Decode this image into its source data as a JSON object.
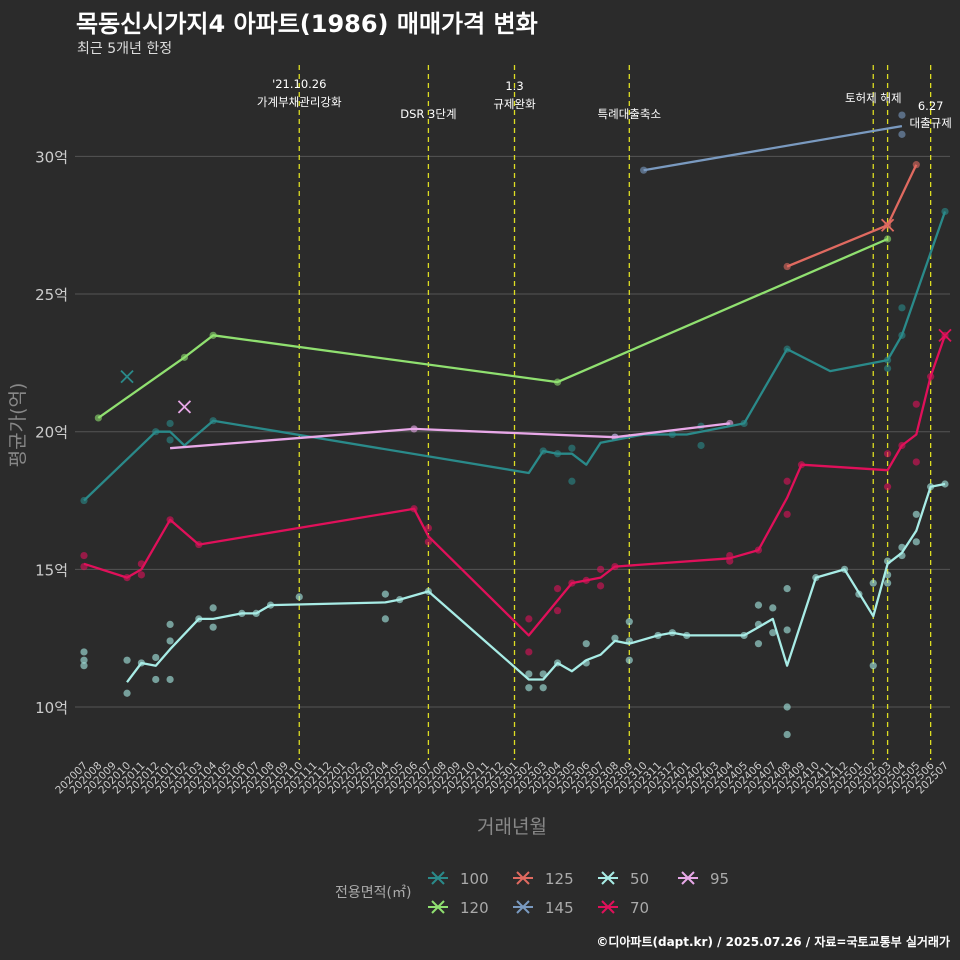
{
  "title": "목동신시가지4 아파트(1986) 매매가격 변화",
  "subtitle": "최근 5개년 한정",
  "caption": "©디아파트(dapt.kr) / 2025.07.26 / 자료=국토교통부 실거래가",
  "colors": {
    "background": "#2b2b2b",
    "grid": "#555555",
    "event_line": "#dddd22",
    "s100": "#2a8a8a",
    "s120": "#90e070",
    "s125": "#e06a60",
    "s145": "#7a9ac0",
    "s50": "#a8ece6",
    "s70": "#e0105a",
    "s95": "#e8a8e8"
  },
  "chart_data": {
    "type": "line",
    "xlabel": "거래년월",
    "ylabel": "평균가(억)",
    "ylim": [
      8,
      33
    ],
    "y_ticks": [
      10,
      15,
      20,
      25,
      30
    ],
    "y_tick_labels": [
      "10억",
      "15억",
      "20억",
      "25억",
      "30억"
    ],
    "x_months": [
      "202007",
      "202008",
      "202009",
      "202010",
      "202011",
      "202012",
      "202101",
      "202102",
      "202103",
      "202104",
      "202105",
      "202106",
      "202107",
      "202108",
      "202109",
      "202110",
      "202111",
      "202112",
      "202201",
      "202202",
      "202203",
      "202204",
      "202205",
      "202206",
      "202207",
      "202208",
      "202209",
      "202210",
      "202211",
      "202212",
      "202301",
      "202302",
      "202303",
      "202304",
      "202305",
      "202306",
      "202307",
      "202308",
      "202309",
      "202310",
      "202311",
      "202312",
      "202401",
      "202402",
      "202403",
      "202404",
      "202405",
      "202406",
      "202407",
      "202408",
      "202409",
      "202410",
      "202411",
      "202412",
      "202501",
      "202502",
      "202503",
      "202504",
      "202505",
      "202506",
      "202507"
    ],
    "legend_title": "전용면적(㎡)",
    "legend_position": "bottom",
    "events": [
      {
        "month": "202110",
        "label": "'21.10.26\n가계부채관리강화"
      },
      {
        "month": "202207",
        "label": "DSR 3단계"
      },
      {
        "month": "202301",
        "label": "1.3\n규제완화"
      },
      {
        "month": "202309",
        "label": "특례대출축소"
      },
      {
        "month": "202502",
        "label": "토허제 해제"
      },
      {
        "month": "202503",
        "label": ""
      },
      {
        "month": "202506",
        "label": "6.27\n대출규제"
      }
    ],
    "series": [
      {
        "name": "100",
        "color_key": "s100",
        "line": [
          [
            "202007",
            17.5
          ],
          [
            "202012",
            20.0
          ],
          [
            "202101",
            20.0
          ],
          [
            "202102",
            19.5
          ],
          [
            "202104",
            20.4
          ],
          [
            "202302",
            18.5
          ],
          [
            "202303",
            19.3
          ],
          [
            "202304",
            19.2
          ],
          [
            "202305",
            19.2
          ],
          [
            "202306",
            18.8
          ],
          [
            "202307",
            19.6
          ],
          [
            "202310",
            19.9
          ],
          [
            "202311",
            19.9
          ],
          [
            "202312",
            19.9
          ],
          [
            "202401",
            19.9
          ],
          [
            "202405",
            20.3
          ],
          [
            "202408",
            23.0
          ],
          [
            "202411",
            22.2
          ],
          [
            "202503",
            22.6
          ],
          [
            "202504",
            23.5
          ],
          [
            "202507",
            28.0
          ]
        ],
        "points": [
          [
            "202007",
            17.5
          ],
          [
            "202012",
            20.0
          ],
          [
            "202101",
            20.3
          ],
          [
            "202101",
            19.7
          ],
          [
            "202104",
            20.4
          ],
          [
            "202303",
            19.3
          ],
          [
            "202304",
            19.2
          ],
          [
            "202305",
            19.4
          ],
          [
            "202305",
            18.2
          ],
          [
            "202308",
            19.8
          ],
          [
            "202312",
            19.9
          ],
          [
            "202402",
            20.2
          ],
          [
            "202402",
            19.5
          ],
          [
            "202405",
            20.3
          ],
          [
            "202408",
            23.0
          ],
          [
            "202503",
            22.6
          ],
          [
            "202503",
            22.3
          ],
          [
            "202504",
            23.5
          ],
          [
            "202504",
            24.5
          ],
          [
            "202507",
            28.0
          ]
        ],
        "crosses": [
          [
            "202010",
            22.0
          ]
        ]
      },
      {
        "name": "120",
        "color_key": "s120",
        "line": [
          [
            "202008",
            20.5
          ],
          [
            "202102",
            22.7
          ],
          [
            "202104",
            23.5
          ],
          [
            "202304",
            21.8
          ],
          [
            "202503",
            27.0
          ]
        ],
        "points": [
          [
            "202008",
            20.5
          ],
          [
            "202102",
            22.7
          ],
          [
            "202104",
            23.5
          ],
          [
            "202304",
            21.8
          ],
          [
            "202503",
            27.0
          ]
        ],
        "crosses": []
      },
      {
        "name": "125",
        "color_key": "s125",
        "line": [
          [
            "202408",
            26.0
          ],
          [
            "202503",
            27.5
          ],
          [
            "202505",
            29.7
          ]
        ],
        "points": [
          [
            "202408",
            26.0
          ],
          [
            "202503",
            27.5
          ],
          [
            "202505",
            29.7
          ]
        ],
        "crosses": [
          [
            "202503",
            27.5
          ]
        ]
      },
      {
        "name": "145",
        "color_key": "s145",
        "line": [
          [
            "202310",
            29.5
          ],
          [
            "202504",
            31.1
          ]
        ],
        "points": [
          [
            "202310",
            29.5
          ],
          [
            "202504",
            31.5
          ],
          [
            "202504",
            30.8
          ]
        ],
        "crosses": []
      },
      {
        "name": "50",
        "color_key": "s50",
        "line": [
          [
            "202010",
            10.9
          ],
          [
            "202011",
            11.6
          ],
          [
            "202012",
            11.5
          ],
          [
            "202101",
            12.1
          ],
          [
            "202103",
            13.2
          ],
          [
            "202104",
            13.2
          ],
          [
            "202106",
            13.4
          ],
          [
            "202107",
            13.4
          ],
          [
            "202108",
            13.7
          ],
          [
            "202204",
            13.8
          ],
          [
            "202205",
            13.9
          ],
          [
            "202207",
            14.2
          ],
          [
            "202302",
            11.0
          ],
          [
            "202303",
            11.0
          ],
          [
            "202304",
            11.6
          ],
          [
            "202305",
            11.3
          ],
          [
            "202306",
            11.7
          ],
          [
            "202307",
            11.9
          ],
          [
            "202308",
            12.4
          ],
          [
            "202309",
            12.3
          ],
          [
            "202311",
            12.6
          ],
          [
            "202312",
            12.7
          ],
          [
            "202401",
            12.6
          ],
          [
            "202405",
            12.6
          ],
          [
            "202406",
            12.9
          ],
          [
            "202407",
            13.2
          ],
          [
            "202408",
            11.5
          ],
          [
            "202410",
            14.7
          ],
          [
            "202412",
            15.0
          ],
          [
            "202502",
            13.3
          ],
          [
            "202503",
            15.2
          ],
          [
            "202504",
            15.6
          ],
          [
            "202505",
            16.4
          ],
          [
            "202506",
            18.0
          ],
          [
            "202507",
            18.1
          ]
        ],
        "points": [
          [
            "202007",
            12.0
          ],
          [
            "202007",
            11.7
          ],
          [
            "202007",
            11.5
          ],
          [
            "202010",
            11.7
          ],
          [
            "202010",
            10.5
          ],
          [
            "202011",
            11.6
          ],
          [
            "202012",
            11.8
          ],
          [
            "202012",
            11.0
          ],
          [
            "202101",
            13.0
          ],
          [
            "202101",
            12.4
          ],
          [
            "202101",
            11.0
          ],
          [
            "202103",
            13.2
          ],
          [
            "202104",
            12.9
          ],
          [
            "202104",
            13.6
          ],
          [
            "202106",
            13.4
          ],
          [
            "202107",
            13.4
          ],
          [
            "202108",
            13.7
          ],
          [
            "202110",
            14.0
          ],
          [
            "202204",
            14.1
          ],
          [
            "202204",
            13.2
          ],
          [
            "202205",
            13.9
          ],
          [
            "202207",
            14.2
          ],
          [
            "202302",
            11.2
          ],
          [
            "202302",
            10.7
          ],
          [
            "202303",
            11.2
          ],
          [
            "202303",
            10.7
          ],
          [
            "202304",
            11.6
          ],
          [
            "202306",
            12.3
          ],
          [
            "202306",
            11.6
          ],
          [
            "202308",
            12.5
          ],
          [
            "202309",
            13.1
          ],
          [
            "202309",
            12.4
          ],
          [
            "202309",
            11.7
          ],
          [
            "202311",
            12.6
          ],
          [
            "202312",
            12.7
          ],
          [
            "202401",
            12.6
          ],
          [
            "202405",
            12.6
          ],
          [
            "202406",
            13.7
          ],
          [
            "202406",
            13.0
          ],
          [
            "202406",
            12.3
          ],
          [
            "202407",
            13.6
          ],
          [
            "202407",
            12.7
          ],
          [
            "202408",
            14.3
          ],
          [
            "202408",
            12.8
          ],
          [
            "202408",
            10.0
          ],
          [
            "202408",
            9.0
          ],
          [
            "202410",
            14.7
          ],
          [
            "202412",
            15.0
          ],
          [
            "202501",
            14.1
          ],
          [
            "202502",
            14.5
          ],
          [
            "202502",
            11.5
          ],
          [
            "202503",
            15.3
          ],
          [
            "202503",
            14.8
          ],
          [
            "202503",
            14.5
          ],
          [
            "202504",
            15.8
          ],
          [
            "202504",
            15.5
          ],
          [
            "202505",
            17.0
          ],
          [
            "202505",
            16.0
          ],
          [
            "202506",
            18.0
          ],
          [
            "202507",
            18.1
          ]
        ],
        "crosses": []
      },
      {
        "name": "70",
        "color_key": "s70",
        "line": [
          [
            "202007",
            15.2
          ],
          [
            "202010",
            14.7
          ],
          [
            "202011",
            15.0
          ],
          [
            "202101",
            16.8
          ],
          [
            "202103",
            15.9
          ],
          [
            "202206",
            17.2
          ],
          [
            "202207",
            16.2
          ],
          [
            "202302",
            12.6
          ],
          [
            "202305",
            14.5
          ],
          [
            "202306",
            14.6
          ],
          [
            "202307",
            14.7
          ],
          [
            "202308",
            15.1
          ],
          [
            "202404",
            15.4
          ],
          [
            "202406",
            15.7
          ],
          [
            "202408",
            17.6
          ],
          [
            "202409",
            18.8
          ],
          [
            "202503",
            18.6
          ],
          [
            "202504",
            19.5
          ],
          [
            "202505",
            19.9
          ],
          [
            "202506",
            22.0
          ],
          [
            "202507",
            23.5
          ]
        ],
        "points": [
          [
            "202007",
            15.5
          ],
          [
            "202007",
            15.1
          ],
          [
            "202010",
            14.7
          ],
          [
            "202011",
            15.2
          ],
          [
            "202011",
            14.8
          ],
          [
            "202101",
            16.8
          ],
          [
            "202103",
            15.9
          ],
          [
            "202206",
            17.2
          ],
          [
            "202207",
            16.5
          ],
          [
            "202207",
            16.0
          ],
          [
            "202302",
            13.2
          ],
          [
            "202302",
            12.0
          ],
          [
            "202304",
            14.3
          ],
          [
            "202304",
            13.5
          ],
          [
            "202305",
            14.5
          ],
          [
            "202306",
            14.6
          ],
          [
            "202307",
            15.0
          ],
          [
            "202307",
            14.4
          ],
          [
            "202308",
            15.1
          ],
          [
            "202404",
            15.5
          ],
          [
            "202404",
            15.3
          ],
          [
            "202406",
            15.7
          ],
          [
            "202408",
            18.2
          ],
          [
            "202408",
            17.0
          ],
          [
            "202409",
            18.8
          ],
          [
            "202503",
            19.2
          ],
          [
            "202503",
            18.0
          ],
          [
            "202504",
            19.5
          ],
          [
            "202505",
            21.0
          ],
          [
            "202505",
            18.9
          ],
          [
            "202506",
            22.0
          ],
          [
            "202507",
            23.5
          ]
        ],
        "crosses": [
          [
            "202507",
            23.5
          ]
        ]
      },
      {
        "name": "95",
        "color_key": "s95",
        "line": [
          [
            "202101",
            19.4
          ],
          [
            "202206",
            20.1
          ],
          [
            "202308",
            19.8
          ],
          [
            "202404",
            20.3
          ]
        ],
        "points": [
          [
            "202206",
            20.1
          ],
          [
            "202308",
            19.8
          ],
          [
            "202404",
            20.3
          ]
        ],
        "crosses": [
          [
            "202102",
            20.9
          ]
        ]
      }
    ]
  }
}
